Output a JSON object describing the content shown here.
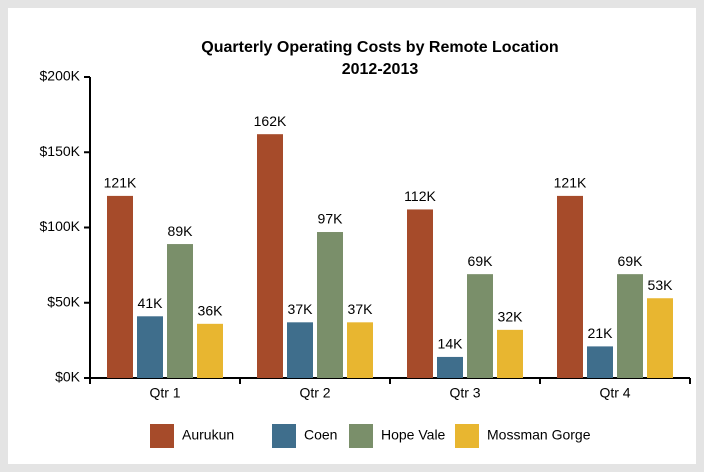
{
  "chart_data": {
    "type": "bar",
    "title": "Quarterly Operating Costs by Remote Location",
    "subtitle": "2012-2013",
    "categories": [
      "Qtr 1",
      "Qtr 2",
      "Qtr 3",
      "Qtr 4"
    ],
    "series": [
      {
        "name": "Aurukun",
        "color": "#a64b2a",
        "values": [
          121000,
          162000,
          112000,
          121000
        ],
        "value_labels": [
          "121K",
          "162K",
          "112K",
          "121K"
        ]
      },
      {
        "name": "Coen",
        "color": "#3f6e8c",
        "values": [
          41000,
          37000,
          14000,
          21000
        ],
        "value_labels": [
          "41K",
          "37K",
          "14K",
          "21K"
        ]
      },
      {
        "name": "Hope Vale",
        "color": "#7a8f6a",
        "values": [
          89000,
          97000,
          69000,
          69000
        ],
        "value_labels": [
          "89K",
          "97K",
          "69K",
          "69K"
        ]
      },
      {
        "name": "Mossman Gorge",
        "color": "#e8b630",
        "values": [
          36000,
          37000,
          32000,
          53000
        ],
        "value_labels": [
          "36K",
          "37K",
          "32K",
          "53K"
        ]
      }
    ],
    "ylim": [
      0,
      200000
    ],
    "yticks": [
      {
        "value": 0,
        "label": "$0K"
      },
      {
        "value": 50000,
        "label": "$50K"
      },
      {
        "value": 100000,
        "label": "$100K"
      },
      {
        "value": 150000,
        "label": "$150K"
      },
      {
        "value": 200000,
        "label": "$200K"
      }
    ],
    "legend": "bottom"
  }
}
